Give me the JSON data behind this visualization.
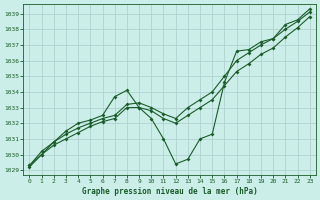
{
  "title": "Graphe pression niveau de la mer (hPa)",
  "background_color": "#cceee8",
  "plot_bg_color": "#cceee8",
  "grid_color": "#aacccc",
  "line_color": "#1a5c2a",
  "xlim": [
    -0.5,
    23.5
  ],
  "ylim": [
    1028.7,
    1039.6
  ],
  "yticks": [
    1029,
    1030,
    1031,
    1032,
    1033,
    1034,
    1035,
    1036,
    1037,
    1038,
    1039
  ],
  "xticks": [
    0,
    1,
    2,
    3,
    4,
    5,
    6,
    7,
    8,
    9,
    10,
    11,
    12,
    13,
    14,
    15,
    16,
    17,
    18,
    19,
    20,
    21,
    22,
    23
  ],
  "series1_jagged": [
    1029.2,
    1030.0,
    1030.8,
    1031.5,
    1032.0,
    1032.2,
    1032.5,
    1033.7,
    1034.1,
    1033.0,
    1032.3,
    1031.0,
    1029.4,
    1029.7,
    1031.0,
    1031.3,
    1034.6,
    1036.6,
    1036.7,
    1037.2,
    1037.4,
    1038.3,
    1038.6,
    1039.3
  ],
  "series2_trend": [
    1029.3,
    1030.2,
    1030.8,
    1031.3,
    1031.7,
    1032.0,
    1032.3,
    1032.5,
    1033.2,
    1033.3,
    1033.0,
    1032.6,
    1032.3,
    1033.0,
    1033.5,
    1034.0,
    1035.0,
    1036.0,
    1036.5,
    1037.0,
    1037.4,
    1038.0,
    1038.5,
    1039.1
  ],
  "series3_trend": [
    1029.3,
    1030.0,
    1030.6,
    1031.0,
    1031.4,
    1031.8,
    1032.1,
    1032.3,
    1033.0,
    1033.0,
    1032.8,
    1032.3,
    1032.0,
    1032.5,
    1033.0,
    1033.5,
    1034.4,
    1035.3,
    1035.8,
    1036.4,
    1036.8,
    1037.5,
    1038.1,
    1038.8
  ]
}
